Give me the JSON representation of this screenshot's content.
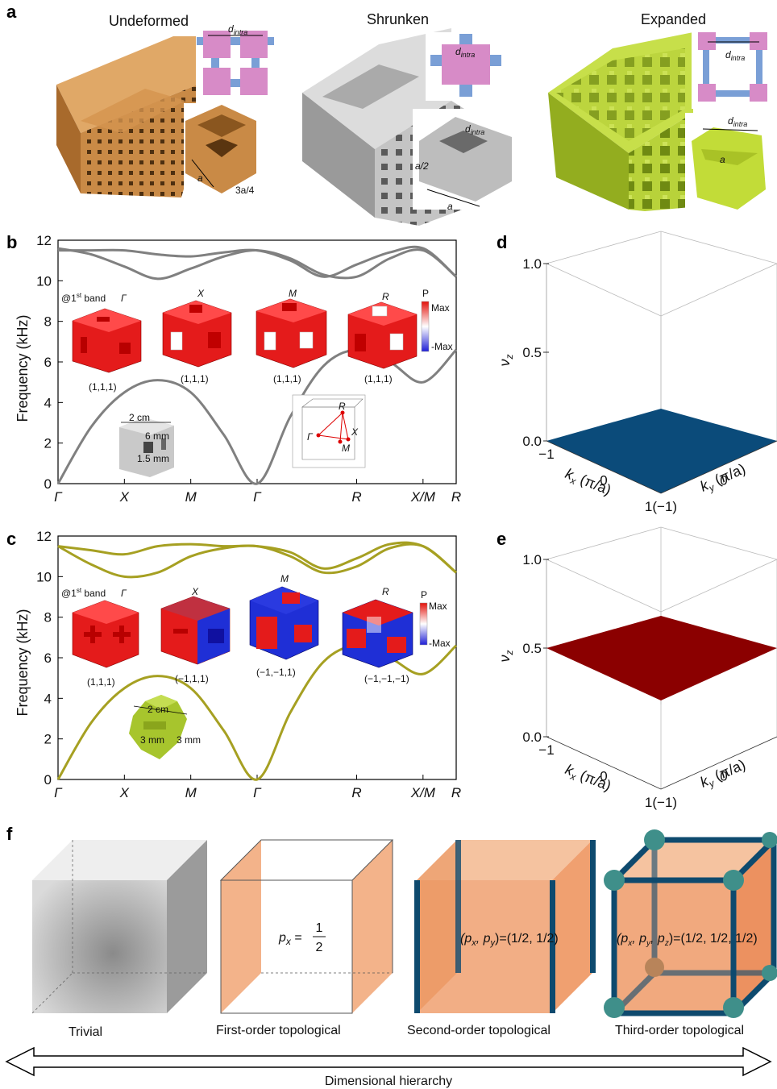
{
  "panel_a": {
    "label": "a",
    "titles": [
      "Undeformed",
      "Shrunken",
      "Expanded"
    ],
    "dim_intra": "d",
    "dim_intra_sub": "intra",
    "dim_a": "a",
    "dim_3a4": "3a/4",
    "dim_a2": "a/2"
  },
  "panel_b": {
    "label": "b",
    "ylabel": "Frequency (kHz)",
    "band_note": "@1",
    "band_note_sup": "st",
    "band_note_tail": " band",
    "gamma_tag": "Γ",
    "insets": [
      {
        "k": "Γ",
        "parity": "(1,1,1)"
      },
      {
        "k": "X",
        "parity": "(1,1,1)"
      },
      {
        "k": "M",
        "parity": "(1,1,1)"
      },
      {
        "k": "R",
        "parity": "(1,1,1)"
      }
    ],
    "colorbar": {
      "title": "P",
      "max": "Max",
      "min": "-Max"
    },
    "unit_cell": {
      "size": "2 cm",
      "hole": "6 mm",
      "wall": "1.5 mm"
    },
    "bz": {
      "R": "R",
      "X": "X",
      "M": "M",
      "G": "Γ"
    }
  },
  "panel_c": {
    "label": "c",
    "ylabel": "Frequency (kHz)",
    "band_note": "@1",
    "band_note_sup": "st",
    "band_note_tail": " band",
    "gamma_tag": "Γ",
    "insets": [
      {
        "k": "",
        "parity": "(1,1,1)"
      },
      {
        "k": "X",
        "parity": "(−1,1,1)"
      },
      {
        "k": "M",
        "parity": "(−1,−1,1)"
      },
      {
        "k": "R",
        "parity": "(−1,−1,−1)"
      }
    ],
    "colorbar": {
      "title": "P",
      "max": "Max",
      "min": "-Max"
    },
    "unit_cell": {
      "size": "2 cm",
      "arm_left": "3 mm",
      "arm_right": "3 mm"
    }
  },
  "panel_d": {
    "label": "d",
    "zlabel": "ν",
    "zlabel_sub": "z",
    "z_ticks": [
      "0.0",
      "0.5",
      "1.0"
    ],
    "kx_ticks": [
      "−1",
      "0",
      "1(−1)"
    ],
    "ky_ticks": [
      "0",
      "1"
    ],
    "kx_label": "k",
    "kx_sub": "x",
    "kx_unit": " (π/a)",
    "ky_label": "k",
    "ky_sub": "y",
    "ky_unit": " (π/a)",
    "surface_value": 0.0,
    "surface_color": "#0b4b7a"
  },
  "panel_e": {
    "label": "e",
    "zlabel": "ν",
    "zlabel_sub": "z",
    "z_ticks": [
      "0.0",
      "0.5",
      "1.0"
    ],
    "kx_ticks": [
      "−1",
      "0",
      "1(−1)"
    ],
    "ky_ticks": [
      "0",
      "1"
    ],
    "kx_label": "k",
    "kx_sub": "x",
    "kx_unit": " (π/a)",
    "ky_label": "k",
    "ky_sub": "y",
    "ky_unit": " (π/a)",
    "surface_value": 0.5,
    "surface_color": "#8b0000"
  },
  "panel_f": {
    "label": "f",
    "captions": [
      "Trivial",
      "First-order topological",
      "Second-order topological",
      "Third-order topological"
    ],
    "formula1": {
      "lhs": "p",
      "sub": "x",
      "eq": " = ",
      "num": "1",
      "den": "2"
    },
    "formula2": {
      "text": "(p",
      "sub1": "x",
      "mid": ", p",
      "sub2": "y",
      "rhs": ")=(1/2, 1/2)"
    },
    "formula3": {
      "text": "(p",
      "sub1": "x",
      "mid1": ", p",
      "sub2": "y",
      "mid2": ", p",
      "sub3": "z",
      "rhs": ")=(1/2, 1/2, 1/2)"
    },
    "hierarchy_label": "Dimensional hierarchy",
    "colors": {
      "orange": "#f0a070",
      "orange_dark": "#e88a4e",
      "hinge": "#0e4a6e",
      "corner": "#3f8f8a"
    }
  },
  "chart_data": [
    {
      "type": "line",
      "panel": "b",
      "xlabel": "",
      "ylabel": "Frequency (kHz)",
      "ylim": [
        0,
        12
      ],
      "x_ticks": [
        "Γ",
        "X",
        "M",
        "Γ",
        "R",
        "X/M",
        "R"
      ],
      "y_ticks": [
        0,
        2,
        4,
        6,
        8,
        10,
        12
      ],
      "series": [
        {
          "x": [
            0,
            0.5,
            1,
            1.5,
            2,
            2.5,
            3,
            3.5,
            4,
            4.5,
            5,
            5.5,
            6
          ],
          "values": [
            0,
            2.8,
            4.5,
            5.1,
            4.5,
            2.4,
            0,
            3.3,
            5.8,
            6.6,
            6.0,
            5.0,
            6.6
          ]
        },
        {
          "x": [
            0,
            0.5,
            1,
            1.5,
            2,
            2.5,
            3,
            3.5,
            4,
            4.5,
            5,
            5.5,
            6
          ],
          "values": [
            11.6,
            11.3,
            10.7,
            10.1,
            10.6,
            11.2,
            11.5,
            11.1,
            10.3,
            10.2,
            11.1,
            11.5,
            10.2
          ]
        },
        {
          "x": [
            0,
            0.5,
            1,
            1.5,
            2,
            2.5,
            3,
            3.5,
            4,
            4.5,
            5,
            5.5,
            6
          ],
          "values": [
            11.5,
            11.5,
            11.5,
            11.3,
            11.2,
            11.4,
            11.5,
            11.0,
            10.2,
            10.8,
            11.4,
            11.6,
            10.2
          ]
        }
      ]
    },
    {
      "type": "line",
      "panel": "c",
      "xlabel": "",
      "ylabel": "Frequency (kHz)",
      "ylim": [
        0,
        12
      ],
      "x_ticks": [
        "Γ",
        "X",
        "M",
        "Γ",
        "R",
        "X/M",
        "R"
      ],
      "y_ticks": [
        0,
        2,
        4,
        6,
        8,
        10,
        12
      ],
      "series": [
        {
          "x": [
            0,
            0.5,
            1,
            1.5,
            2,
            2.5,
            3,
            3.5,
            4,
            4.5,
            5,
            5.5,
            6
          ],
          "values": [
            0,
            2.8,
            4.5,
            5.1,
            4.5,
            2.4,
            0,
            3.3,
            5.8,
            6.6,
            6.0,
            5.2,
            6.6
          ]
        },
        {
          "x": [
            0,
            0.5,
            1,
            1.5,
            2,
            2.5,
            3,
            3.5,
            4,
            4.5,
            5,
            5.5,
            6
          ],
          "values": [
            11.5,
            10.6,
            10.0,
            10.2,
            11.0,
            11.4,
            11.5,
            11.0,
            10.2,
            10.5,
            11.4,
            11.5,
            10.2
          ]
        },
        {
          "x": [
            0,
            0.5,
            1,
            1.5,
            2,
            2.5,
            3,
            3.5,
            4,
            4.5,
            5,
            5.5,
            6
          ],
          "values": [
            11.5,
            11.3,
            11.1,
            11.5,
            11.6,
            11.5,
            11.5,
            11.2,
            10.4,
            10.9,
            11.6,
            11.5,
            10.2
          ]
        }
      ]
    }
  ]
}
